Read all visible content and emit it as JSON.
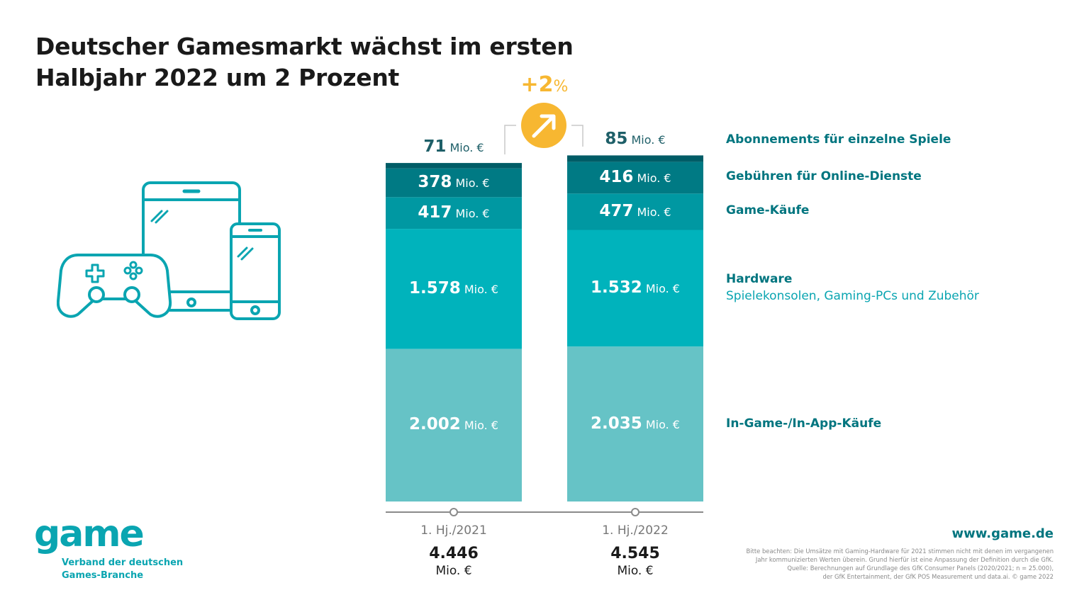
{
  "title": {
    "line1": "Deutscher Gamesmarkt wächst im ersten",
    "line2": "Halbjahr 2022 um 2 Prozent"
  },
  "growth": {
    "value": "+2",
    "unit": "%",
    "icon": "arrow-up-right-icon",
    "color": "#f7b731"
  },
  "chart_data": {
    "type": "bar",
    "stacked": true,
    "categories": [
      "1. Hj./2021",
      "1. Hj./2022"
    ],
    "unit": "Mio. €",
    "series": [
      {
        "name": "In-Game-/In-App-Käufe",
        "values": [
          2002,
          2035
        ],
        "display": [
          "2.002",
          "2.035"
        ],
        "color": "#66c3c6"
      },
      {
        "name": "Hardware",
        "values": [
          1578,
          1532
        ],
        "display": [
          "1.578",
          "1.532"
        ],
        "color": "#00b3bc",
        "sub": "Spielekonsolen, Gaming-PCs und Zubehör"
      },
      {
        "name": "Game-Käufe",
        "values": [
          417,
          477
        ],
        "display": [
          "417",
          "477"
        ],
        "color": "#0098a2"
      },
      {
        "name": "Gebühren für Online-Dienste",
        "values": [
          378,
          416
        ],
        "display": [
          "378",
          "416"
        ],
        "color": "#007a84"
      },
      {
        "name": "Abonnements für einzelne Spiele",
        "values": [
          71,
          85
        ],
        "display": [
          "71",
          "85"
        ],
        "color": "#005c66"
      }
    ],
    "totals": {
      "values": [
        4446,
        4545
      ],
      "display": [
        "4.446",
        "4.545"
      ],
      "unit": "Mio. €"
    }
  },
  "logo": {
    "word": "game",
    "line1": "Verband der deutschen",
    "line2": "Games-Branche"
  },
  "footer": {
    "url": "www.game.de",
    "notes": [
      "Bitte beachten: Die Umsätze mit Gaming-Hardware für 2021 stimmen nicht mit denen im vergangenen",
      "Jahr kommunizierten Werten überein. Grund hierfür ist eine Anpassung der Definition durch die GfK.",
      "Quelle: Berechnungen auf Grundlage des GfK Consumer Panels (2020/2021; n = 25.000),",
      "der GfK Entertainment, der GfK POS Measurement und data.ai. © game 2022"
    ]
  },
  "colors": {
    "accent": "#0aa5b1",
    "dark_teal": "#00757f",
    "growth": "#f7b731"
  },
  "icons": [
    "gamepad-icon",
    "tablet-icon",
    "smartphone-icon",
    "arrow-up-right-icon"
  ]
}
